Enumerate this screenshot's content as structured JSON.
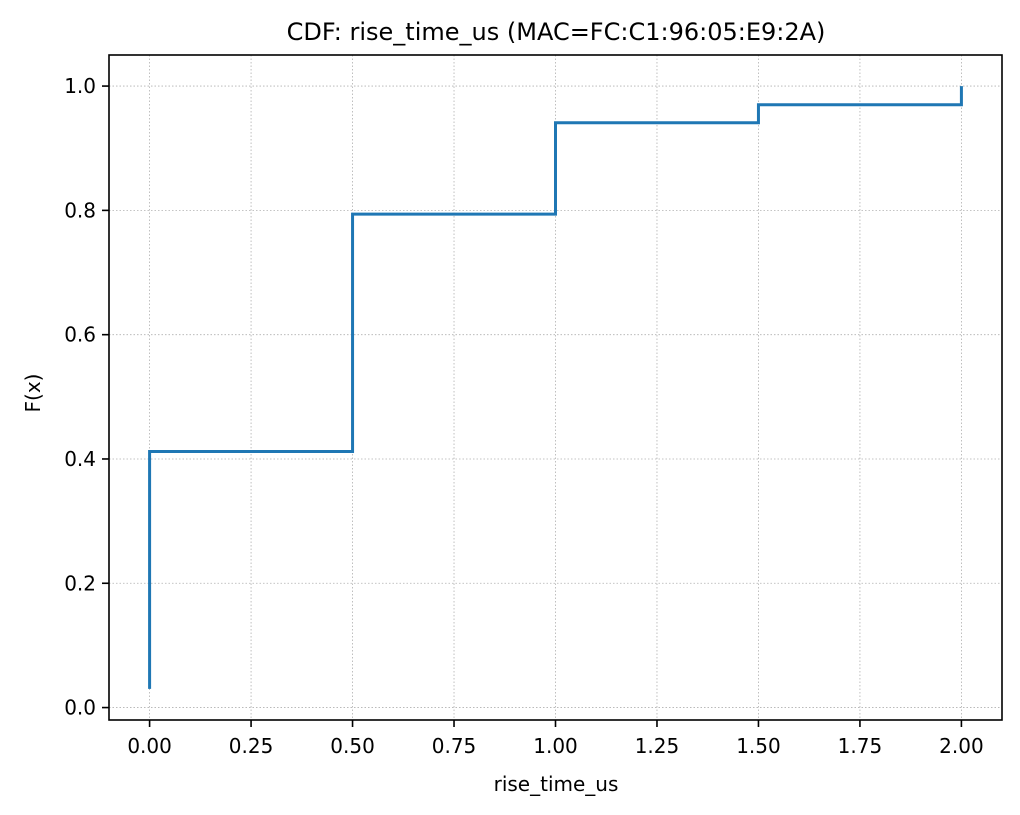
{
  "chart_data": {
    "type": "line",
    "step": true,
    "title": "CDF: rise_time_us (MAC=FC:C1:96:05:E9:2A)",
    "xlabel": "rise_time_us",
    "ylabel": "F(x)",
    "xlim": [
      -0.1,
      2.1
    ],
    "ylim": [
      -0.02,
      1.05
    ],
    "x_ticks": [
      0.0,
      0.25,
      0.5,
      0.75,
      1.0,
      1.25,
      1.5,
      1.75,
      2.0
    ],
    "x_tick_labels": [
      "0.00",
      "0.25",
      "0.50",
      "0.75",
      "1.00",
      "1.25",
      "1.50",
      "1.75",
      "2.00"
    ],
    "y_ticks": [
      0.0,
      0.2,
      0.4,
      0.6,
      0.8,
      1.0
    ],
    "y_tick_labels": [
      "0.0",
      "0.2",
      "0.4",
      "0.6",
      "0.8",
      "1.0"
    ],
    "grid": true,
    "series": [
      {
        "color": "#1f77b4",
        "x": [
          0.0,
          0.0,
          0.5,
          0.5,
          1.0,
          1.0,
          1.5,
          1.5,
          2.0,
          2.0
        ],
        "y": [
          0.03,
          0.412,
          0.412,
          0.794,
          0.794,
          0.941,
          0.941,
          0.97,
          0.97,
          1.0
        ]
      }
    ]
  }
}
